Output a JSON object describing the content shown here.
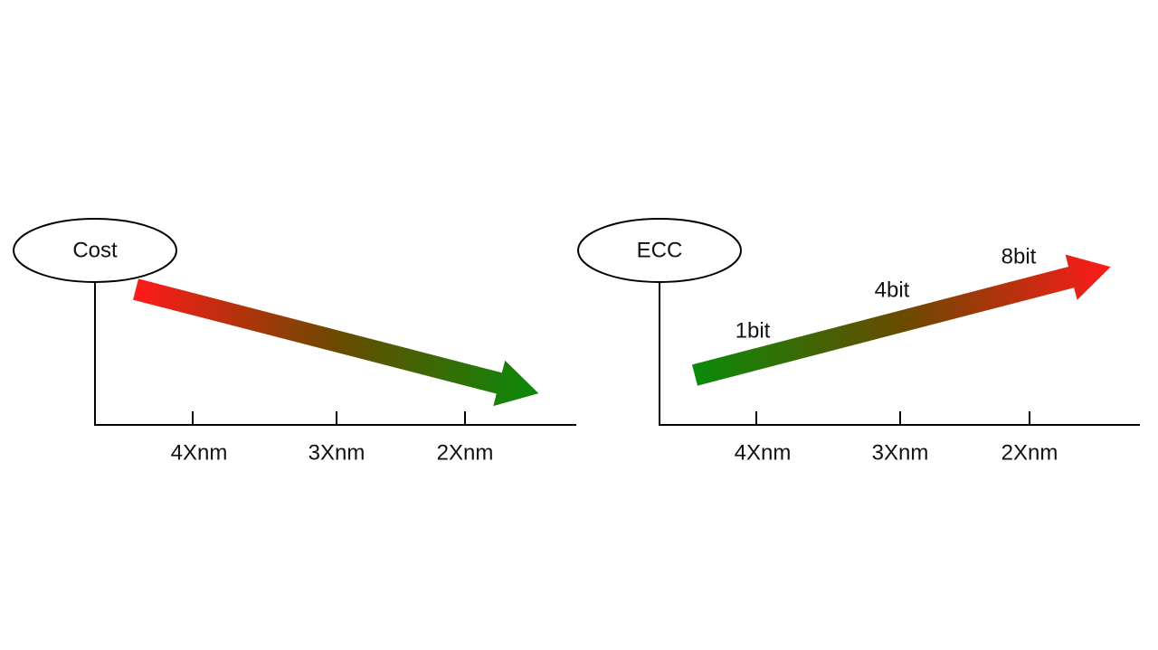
{
  "panels": [
    {
      "label": "Cost",
      "ticks": [
        "4Xnm",
        "3Xnm",
        "2Xnm"
      ]
    },
    {
      "label": "ECC",
      "ticks": [
        "4Xnm",
        "3Xnm",
        "2Xnm"
      ],
      "arrow_labels": [
        "1bit",
        "4bit",
        "8bit"
      ]
    }
  ]
}
